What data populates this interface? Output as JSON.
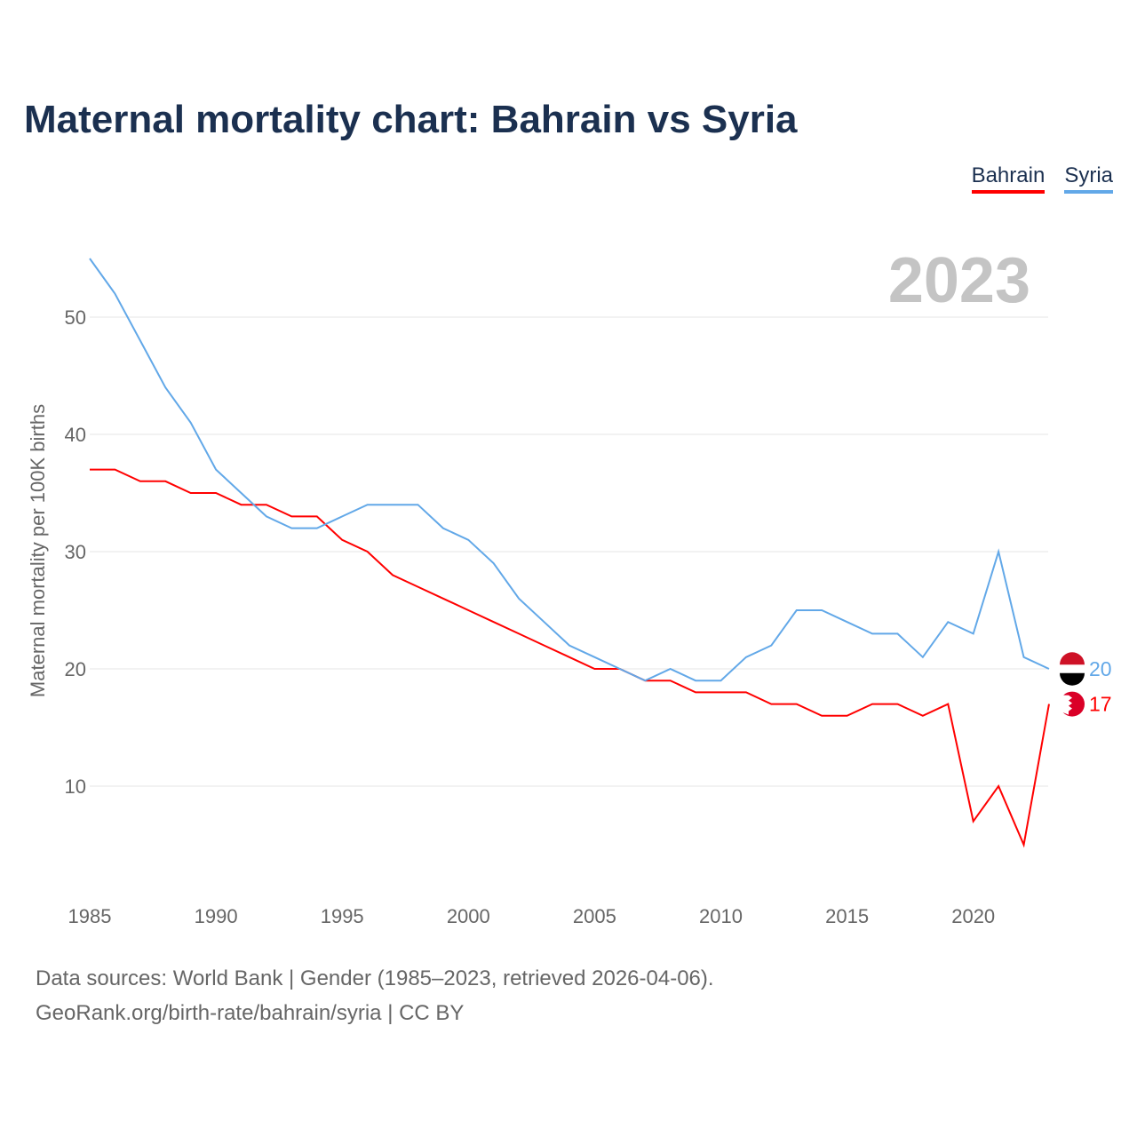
{
  "chart_data": {
    "type": "line",
    "title": "Maternal mortality chart: Bahrain vs Syria",
    "ylabel": "Maternal mortality per 100K births",
    "xlabel": "",
    "year_label": "2023",
    "x": [
      1985,
      1986,
      1987,
      1988,
      1989,
      1990,
      1991,
      1992,
      1993,
      1994,
      1995,
      1996,
      1997,
      1998,
      1999,
      2000,
      2001,
      2002,
      2003,
      2004,
      2005,
      2006,
      2007,
      2008,
      2009,
      2010,
      2011,
      2012,
      2013,
      2014,
      2015,
      2016,
      2017,
      2018,
      2019,
      2020,
      2021,
      2022,
      2023
    ],
    "series": [
      {
        "name": "Bahrain",
        "color": "#ff0000",
        "end_label": "17",
        "values": [
          37,
          37,
          36,
          36,
          35,
          35,
          34,
          34,
          33,
          33,
          31,
          30,
          28,
          27,
          26,
          25,
          24,
          23,
          22,
          21,
          20,
          20,
          19,
          19,
          18,
          18,
          18,
          17,
          17,
          16,
          16,
          17,
          17,
          16,
          17,
          7,
          10,
          5,
          17
        ]
      },
      {
        "name": "Syria",
        "color": "#62a8e8",
        "end_label": "20",
        "values": [
          55,
          52,
          48,
          44,
          41,
          37,
          35,
          33,
          32,
          32,
          33,
          34,
          34,
          34,
          32,
          31,
          29,
          26,
          24,
          22,
          21,
          20,
          19,
          20,
          19,
          19,
          21,
          22,
          25,
          25,
          24,
          23,
          23,
          21,
          24,
          23,
          30,
          21,
          20
        ]
      }
    ],
    "xticks": [
      "1985",
      "1990",
      "1995",
      "2000",
      "2005",
      "2010",
      "2015",
      "2020"
    ],
    "yticks": [
      "10",
      "20",
      "30",
      "40",
      "50"
    ],
    "xlim": [
      1985,
      2023
    ],
    "ylim": [
      0,
      55
    ],
    "grid": true,
    "legend_position": "top-right"
  },
  "footer": {
    "line1": "Data sources: World Bank | Gender (1985–2023, retrieved 2026-04-06).",
    "line2": "GeoRank.org/birth-rate/bahrain/syria | CC BY"
  }
}
